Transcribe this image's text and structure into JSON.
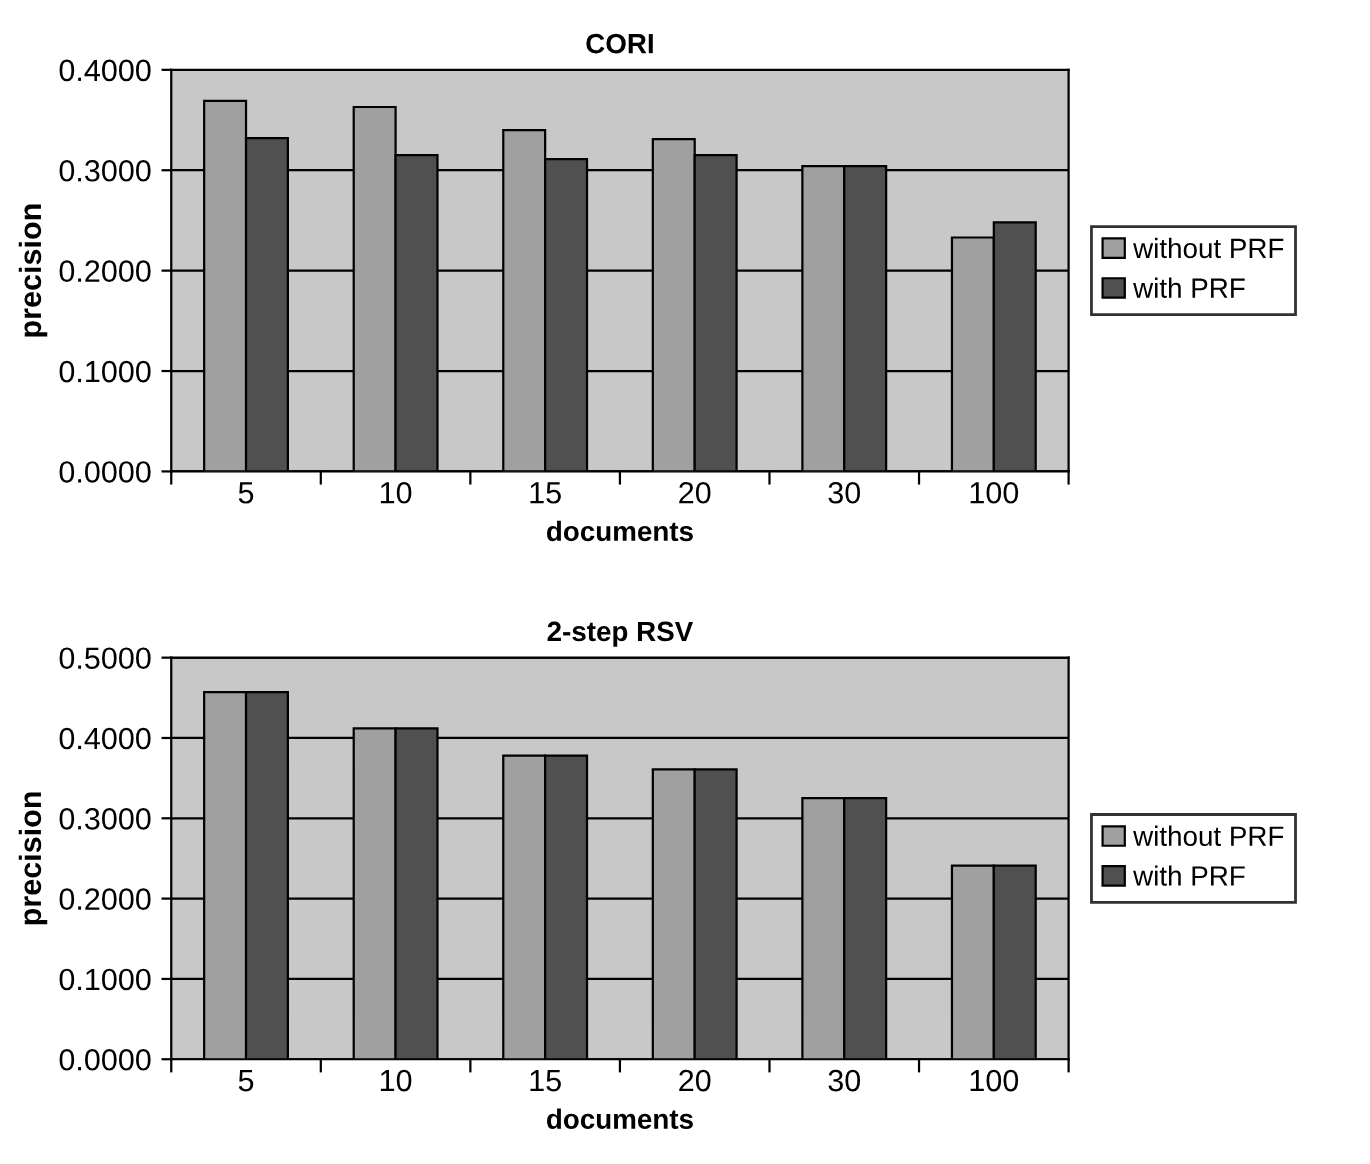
{
  "chart_data": [
    {
      "type": "bar",
      "title": "CORI",
      "xlabel": "documents",
      "ylabel": "precision",
      "categories": [
        "5",
        "10",
        "15",
        "20",
        "30",
        "100"
      ],
      "series": [
        {
          "name": "without PRF",
          "color": "#a0a0a0",
          "values": [
            0.369,
            0.363,
            0.34,
            0.331,
            0.304,
            0.233
          ]
        },
        {
          "name": "with PRF",
          "color": "#505050",
          "values": [
            0.332,
            0.315,
            0.311,
            0.315,
            0.304,
            0.248
          ]
        }
      ],
      "ylim": [
        0,
        0.4
      ],
      "yticks": [
        {
          "value": 0,
          "label": "0.0000"
        },
        {
          "value": 0.1,
          "label": "0.1000"
        },
        {
          "value": 0.2,
          "label": "0.2000"
        },
        {
          "value": 0.3,
          "label": "0.3000"
        },
        {
          "value": 0.4,
          "label": "0.4000"
        }
      ],
      "grid": "y",
      "legend": "right"
    },
    {
      "type": "bar",
      "title": "2-step RSV",
      "xlabel": "documents",
      "ylabel": "precision",
      "categories": [
        "5",
        "10",
        "15",
        "20",
        "30",
        "100"
      ],
      "series": [
        {
          "name": "without PRF",
          "color": "#a0a0a0",
          "values": [
            0.457,
            0.412,
            0.378,
            0.361,
            0.325,
            0.241
          ]
        },
        {
          "name": "with PRF",
          "color": "#505050",
          "values": [
            0.457,
            0.412,
            0.378,
            0.361,
            0.325,
            0.241
          ]
        }
      ],
      "ylim": [
        0,
        0.5
      ],
      "yticks": [
        {
          "value": 0,
          "label": "0.0000"
        },
        {
          "value": 0.1,
          "label": "0.1000"
        },
        {
          "value": 0.2,
          "label": "0.2000"
        },
        {
          "value": 0.3,
          "label": "0.3000"
        },
        {
          "value": 0.4,
          "label": "0.4000"
        },
        {
          "value": 0.5,
          "label": "0.5000"
        }
      ],
      "grid": "y",
      "legend": "right"
    }
  ]
}
